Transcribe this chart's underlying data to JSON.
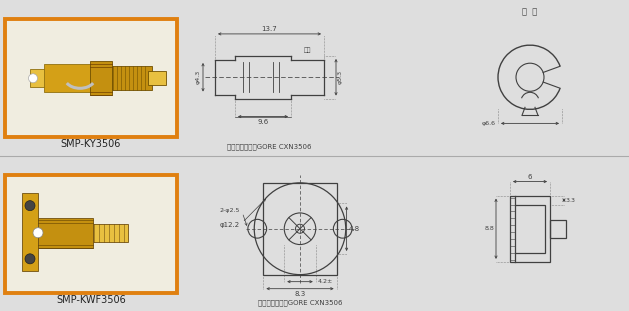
{
  "bg_color": "#dedede",
  "row_bg": "#dedede",
  "photo_border": "#e08010",
  "photo_fill": "#f0ede0",
  "line_color": "#404040",
  "dim_color": "#404040",
  "label1": "SMP-KY3506",
  "label2": "SMP-KWF3506",
  "note1": "配接电缆型号：GORE CXN3506",
  "note2": "配接电缆型号：GORE CXN3506",
  "ring_label": "契  圈",
  "d1_96": "9.6",
  "d1_137": "13.7",
  "d1_43": "φ4.3",
  "d1_53": "φ5.3",
  "d1_66": "φ6.6",
  "d1_rec": "推荐",
  "d2_83": "8.3",
  "d2_42": "4.2±",
  "d2_122": "φ12.2",
  "d2_48": "4.8",
  "d2_225": "2-φ2.5",
  "d2_s6": "6",
  "d2_s33": "3.3",
  "d2_s88": "8.8",
  "gold1": "#D4A017",
  "gold2": "#C49010",
  "gold3": "#E8C040",
  "silver": "#C0C0C0"
}
